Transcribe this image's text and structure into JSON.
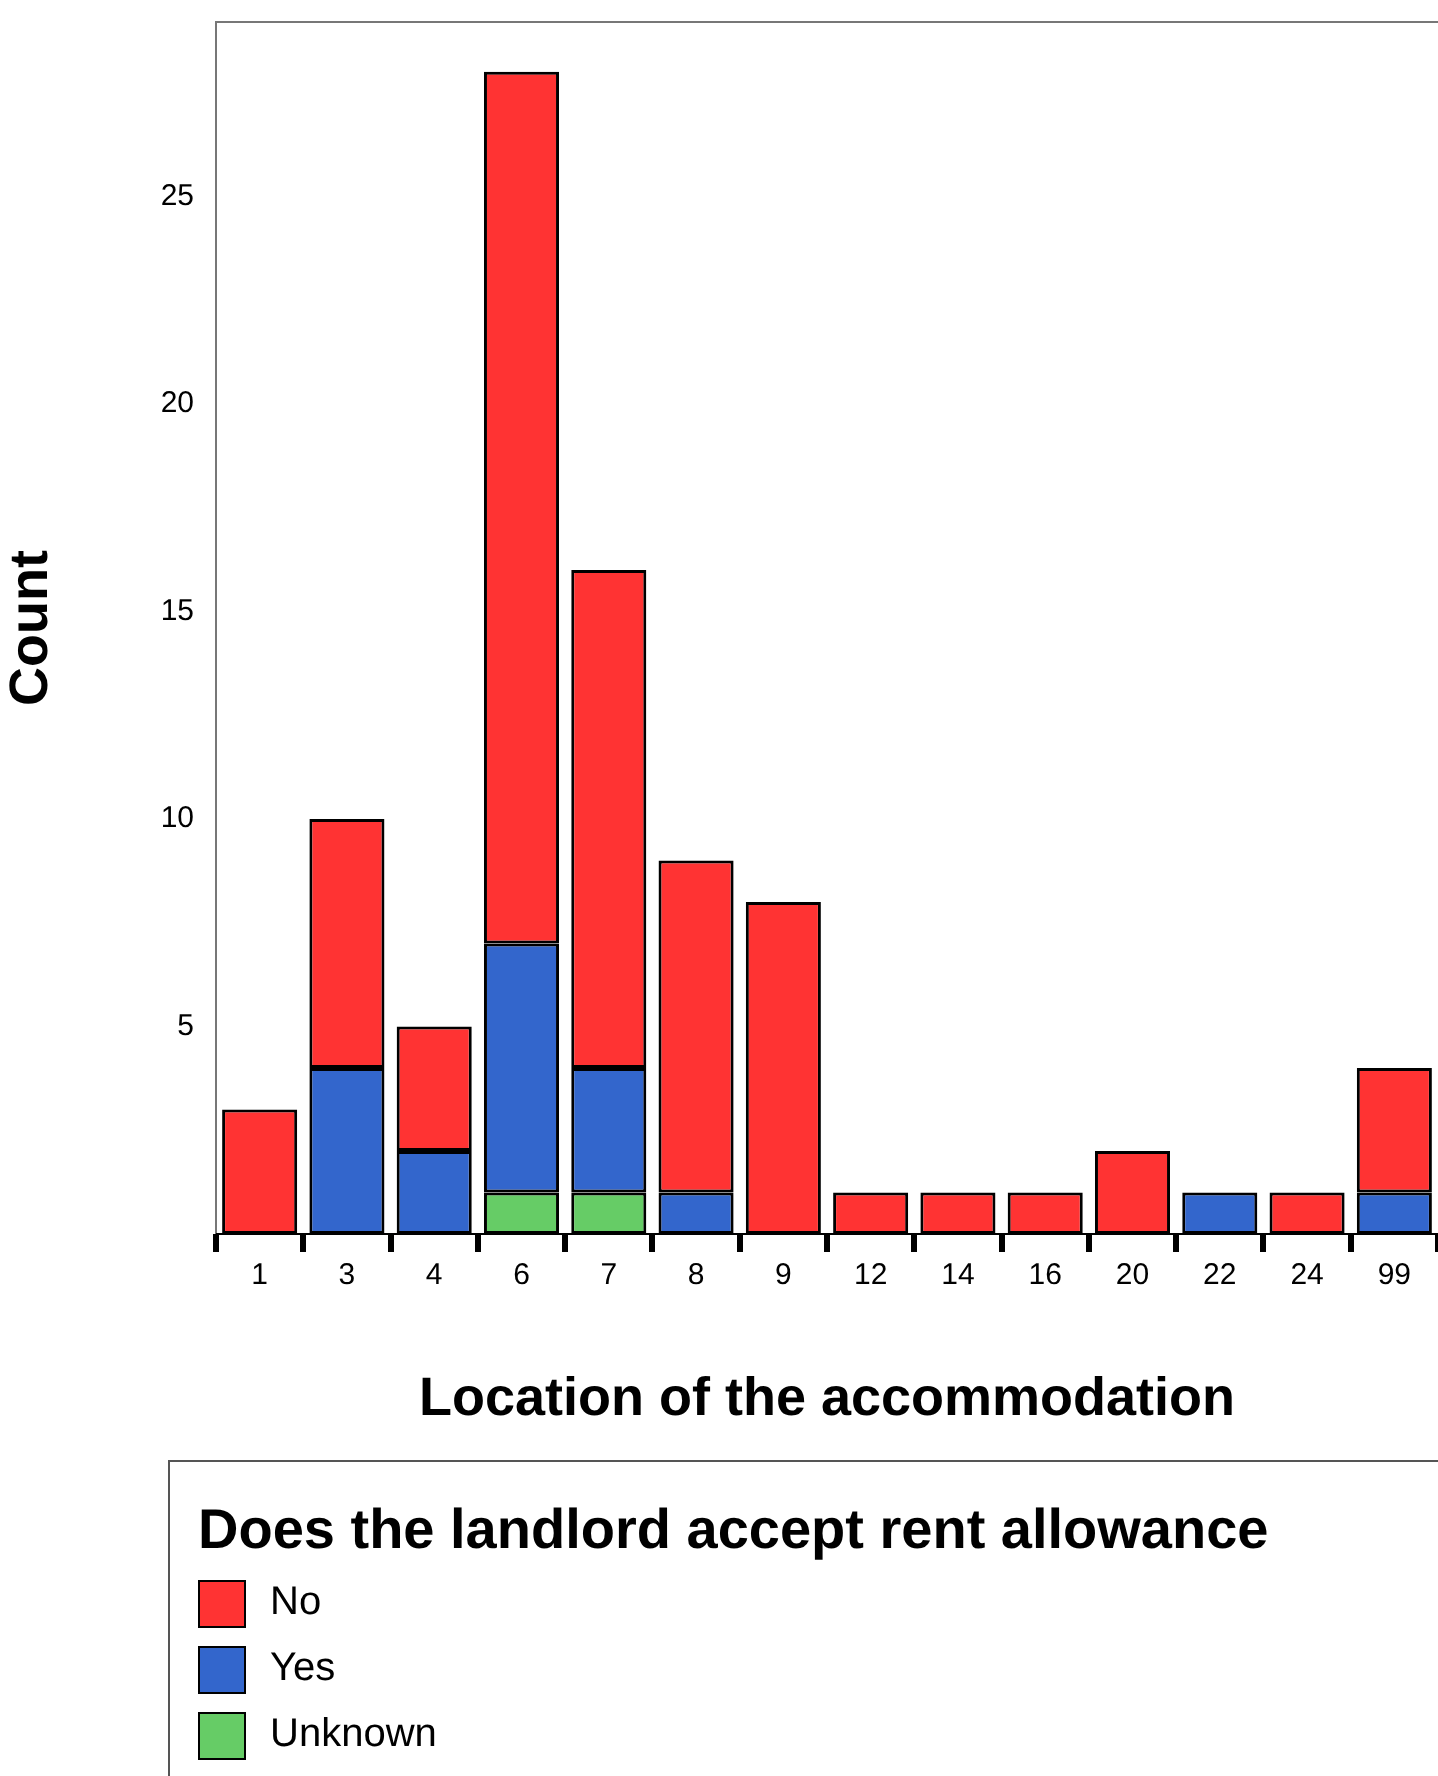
{
  "chart_data": {
    "type": "bar",
    "stacked": true,
    "xlabel": "Location of the accommodation",
    "ylabel": "Count",
    "legend_title": "Does the landlord accept rent allowance",
    "legend": "bottom",
    "grid": false,
    "categories": [
      "1",
      "3",
      "4",
      "6",
      "7",
      "8",
      "9",
      "12",
      "14",
      "16",
      "20",
      "22",
      "24",
      "99"
    ],
    "ylim": [
      0,
      29.2
    ],
    "yticks": [
      5,
      10,
      15,
      20,
      25
    ],
    "series": [
      {
        "name": "Unknown",
        "color": "#66cc66",
        "values": [
          0,
          0,
          0,
          1,
          1,
          0,
          0,
          0,
          0,
          0,
          0,
          0,
          0,
          0
        ]
      },
      {
        "name": "Yes",
        "color": "#3366cc",
        "values": [
          0,
          4,
          2,
          6,
          3,
          1,
          0,
          0,
          0,
          0,
          0,
          1,
          0,
          1
        ]
      },
      {
        "name": "No",
        "color": "#ff3333",
        "values": [
          3,
          6,
          3,
          21,
          12,
          8,
          8,
          1,
          1,
          1,
          2,
          0,
          1,
          3
        ]
      }
    ]
  }
}
